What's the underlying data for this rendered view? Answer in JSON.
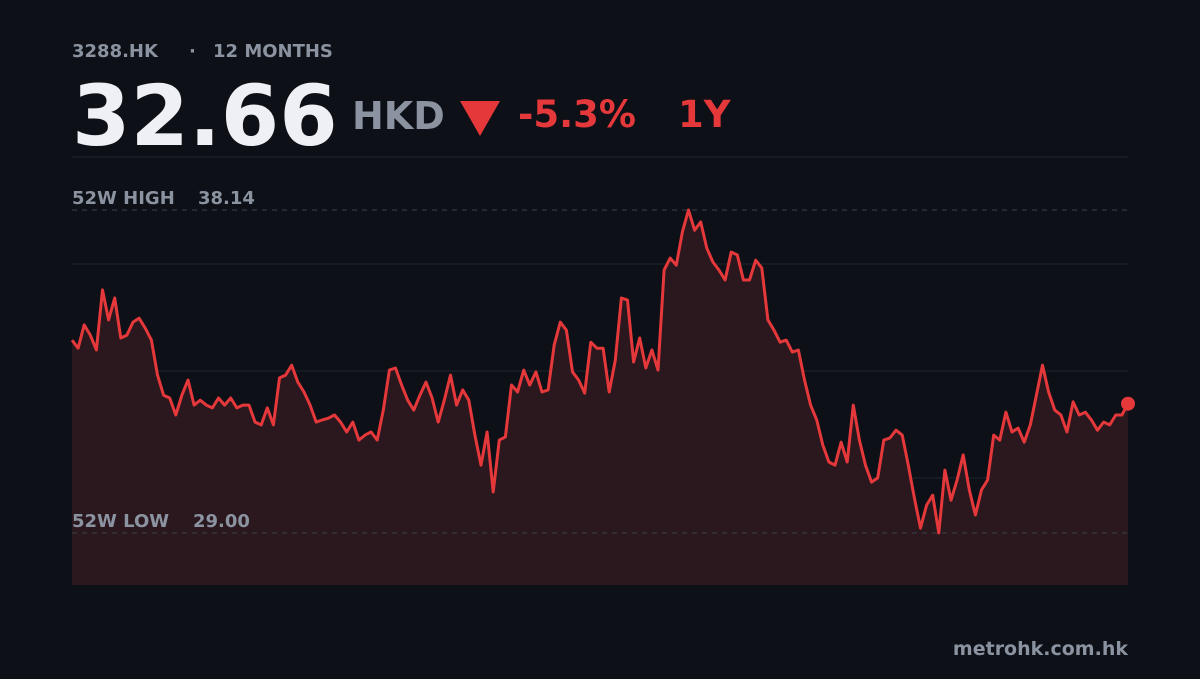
{
  "header": {
    "ticker": "3288.HK",
    "separator": "·",
    "period": "12 MONTHS",
    "price": 32.66,
    "currency": "HKD",
    "change": {
      "value": -5.3,
      "label": "-5.3%"
    },
    "range": "1Y"
  },
  "footer": "metrohk.com.hk",
  "chart_data": {
    "type": "line",
    "color": "#e5383b",
    "fill": "#2a181e",
    "ylim": [
      27.53,
      39.64
    ],
    "high": {
      "label": "52W HIGH",
      "value": 38.14
    },
    "low": {
      "label": "52W LOW",
      "value": {
        "value": 29,
        "label": "29.00"
      }
    },
    "values": [
      34.46,
      34.23,
      34.89,
      34.6,
      34.18,
      35.88,
      35.03,
      35.65,
      34.52,
      34.6,
      34.97,
      35.08,
      34.8,
      34.46,
      33.47,
      32.9,
      32.82,
      32.34,
      32.9,
      33.33,
      32.62,
      32.76,
      32.62,
      32.54,
      32.82,
      32.62,
      32.82,
      32.54,
      32.62,
      32.62,
      32.14,
      32.06,
      32.54,
      32.06,
      33.39,
      33.47,
      33.75,
      33.27,
      32.99,
      32.62,
      32.14,
      32.2,
      32.25,
      32.34,
      32.14,
      31.86,
      32.14,
      31.63,
      31.77,
      31.86,
      31.63,
      32.48,
      33.61,
      33.67,
      33.19,
      32.76,
      32.48,
      32.9,
      33.27,
      32.82,
      32.14,
      32.76,
      33.47,
      32.62,
      33.05,
      32.76,
      31.77,
      30.92,
      31.86,
      30.16,
      31.63,
      31.72,
      33.19,
      32.99,
      33.61,
      33.19,
      33.56,
      32.99,
      33.05,
      34.32,
      34.97,
      34.74,
      33.56,
      33.33,
      32.96,
      34.4,
      34.23,
      34.23,
      32.99,
      33.89,
      35.65,
      35.59,
      33.84,
      34.52,
      33.67,
      34.18,
      33.61,
      36.44,
      36.78,
      36.58,
      37.52,
      38.14,
      37.57,
      37.8,
      37.06,
      36.67,
      36.44,
      36.16,
      36.95,
      36.87,
      36.16,
      36.16,
      36.72,
      36.5,
      35.03,
      34.74,
      34.4,
      34.46,
      34.12,
      34.18,
      33.33,
      32.62,
      32.2,
      31.49,
      31.01,
      30.92,
      31.57,
      31.01,
      32.62,
      31.63,
      30.92,
      30.44,
      30.56,
      31.63,
      31.69,
      31.91,
      31.77,
      30.92,
      29.99,
      29.14,
      29.79,
      30.07,
      29.0,
      30.78,
      29.93,
      30.5,
      31.21,
      30.22,
      29.51,
      30.22,
      30.5,
      31.77,
      31.63,
      32.42,
      31.86,
      31.97,
      31.57,
      32.06,
      32.9,
      33.75,
      32.99,
      32.48,
      32.34,
      31.86,
      32.71,
      32.34,
      32.42,
      32.2,
      31.91,
      32.14,
      32.06,
      32.34,
      32.34,
      32.66
    ]
  }
}
